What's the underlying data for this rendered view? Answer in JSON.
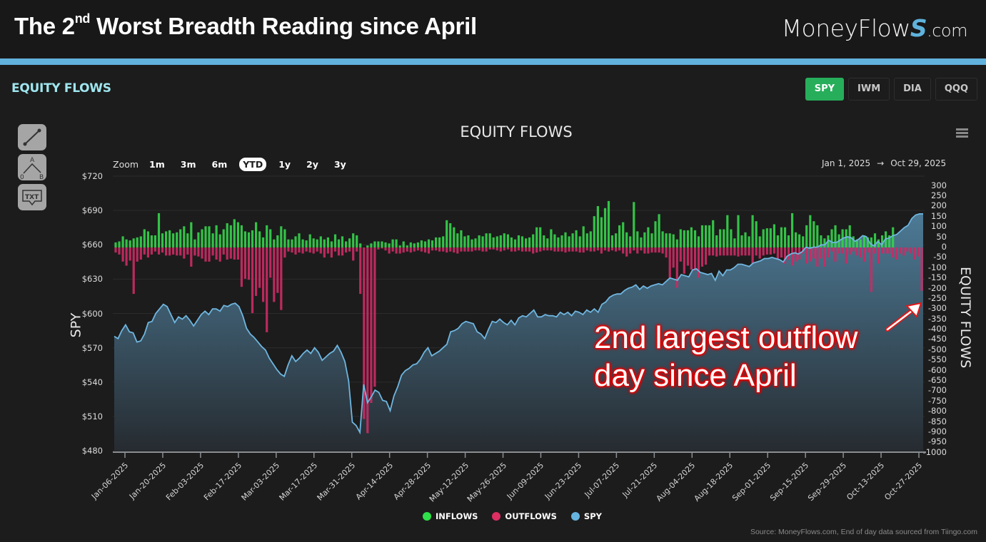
{
  "header": {
    "title_pre": "The 2",
    "title_sup": "nd",
    "title_post": " Worst Breadth Reading since April",
    "brand_main": "MoneyFlow",
    "brand_s": "S",
    "brand_domain": ".com"
  },
  "section": {
    "title": "EQUITY FLOWS"
  },
  "tickers": [
    {
      "label": "SPY",
      "active": true
    },
    {
      "label": "IWM",
      "active": false
    },
    {
      "label": "DIA",
      "active": false
    },
    {
      "label": "QQQ",
      "active": false
    }
  ],
  "tools": [
    {
      "name": "trend-line-tool",
      "label": ""
    },
    {
      "name": "abc-pattern-tool",
      "label": "A 0 B"
    },
    {
      "name": "text-annotation-tool",
      "label": "TXT"
    }
  ],
  "chart": {
    "title": "EQUITY FLOWS",
    "zoom_label": "Zoom",
    "zoom_options": [
      {
        "label": "1m",
        "active": false
      },
      {
        "label": "3m",
        "active": false
      },
      {
        "label": "6m",
        "active": false
      },
      {
        "label": "YTD",
        "active": true
      },
      {
        "label": "1y",
        "active": false
      },
      {
        "label": "2y",
        "active": false
      },
      {
        "label": "3y",
        "active": false
      }
    ],
    "range_from": "Jan 1, 2025",
    "range_arrow": "→",
    "range_to": "Oct 29, 2025",
    "left_axis_title": "SPY",
    "right_axis_title": "EQUITY FLOWS",
    "annotation_line1": "2nd largest outflow",
    "annotation_line2": "day since April",
    "source": "Source: MoneyFlows.com, End of day data sourced from Tiingo.com"
  },
  "legend": [
    {
      "label": "INFLOWS",
      "color": "#2ee04a"
    },
    {
      "label": "OUTFLOWS",
      "color": "#dd2f62"
    },
    {
      "label": "SPY",
      "color": "#66b3e0"
    }
  ],
  "colors": {
    "inflow": "#36d04c",
    "outflow": "#c92b64",
    "spy_line": "#6fb6e0",
    "spy_fill_top": "#4f7f9c",
    "spy_fill_bottom": "#262b30",
    "grid": "#2b2b2b",
    "active_ticker": "#27ae5b",
    "accent_stripe": "#62b2de"
  },
  "chart_data": {
    "type": "bar+line",
    "title": "EQUITY FLOWS",
    "xlabel": "",
    "ylabel_left": "SPY",
    "ylabel_right": "EQUITY FLOWS",
    "ylim_left": [
      480,
      720
    ],
    "ylim_right": [
      -1000,
      300
    ],
    "left_ticks": [
      "$720",
      "$690",
      "$660",
      "$630",
      "$600",
      "$570",
      "$540",
      "$510",
      "$480"
    ],
    "right_ticks": [
      "300",
      "250",
      "200",
      "150",
      "100",
      "50",
      "0",
      "-50",
      "-100",
      "-150",
      "-200",
      "-250",
      "-300",
      "-350",
      "-400",
      "-450",
      "-500",
      "-550",
      "-600",
      "-650",
      "-700",
      "-750",
      "-800",
      "-850",
      "-900",
      "-950",
      "-1000"
    ],
    "x_ticks": [
      "Jan-06-2025",
      "Jan-20-2025",
      "Feb-03-2025",
      "Feb-17-2025",
      "Mar-03-2025",
      "Mar-17-2025",
      "Mar-31-2025",
      "Apr-14-2025",
      "Apr-28-2025",
      "May-12-2025",
      "May-26-2025",
      "Jun-09-2025",
      "Jun-23-2025",
      "Jul-07-2025",
      "Jul-21-2025",
      "Aug-04-2025",
      "Aug-18-2025",
      "Sep-01-2025",
      "Sep-15-2025",
      "Sep-29-2025",
      "Oct-13-2025",
      "Oct-27-2025"
    ],
    "legend": [
      "INFLOWS",
      "OUTFLOWS",
      "SPY"
    ],
    "grid": true,
    "series": [
      {
        "name": "INFLOWS",
        "type": "bar",
        "values": [
          25,
          30,
          55,
          40,
          35,
          45,
          50,
          55,
          90,
          80,
          60,
          60,
          170,
          70,
          80,
          85,
          70,
          75,
          90,
          105,
          70,
          125,
          40,
          75,
          90,
          105,
          105,
          70,
          110,
          65,
          90,
          120,
          110,
          140,
          125,
          110,
          80,
          75,
          85,
          125,
          80,
          50,
          110,
          90,
          40,
          60,
          105,
          90,
          40,
          40,
          55,
          70,
          40,
          35,
          65,
          45,
          40,
          55,
          40,
          50,
          30,
          65,
          40,
          55,
          30,
          45,
          70,
          60,
          20,
          0,
          10,
          20,
          30,
          30,
          30,
          25,
          20,
          40,
          40,
          10,
          30,
          10,
          25,
          20,
          25,
          35,
          30,
          40,
          35,
          50,
          50,
          55,
          135,
          120,
          100,
          70,
          85,
          55,
          60,
          40,
          45,
          60,
          55,
          70,
          70,
          50,
          55,
          60,
          70,
          65,
          50,
          40,
          60,
          55,
          45,
          50,
          65,
          100,
          100,
          60,
          45,
          90,
          65,
          50,
          60,
          75,
          55,
          70,
          85,
          55,
          105,
          70,
          80,
          155,
          205,
          150,
          195,
          230,
          60,
          70,
          110,
          125,
          75,
          55,
          225,
          80,
          50,
          75,
          100,
          70,
          130,
          165,
          80,
          70,
          70,
          65,
          40,
          90,
          85,
          85,
          100,
          85,
          55,
          110,
          110,
          110,
          135,
          60,
          90,
          90,
          160,
          90,
          45,
          160,
          60,
          75,
          55,
          160,
          130,
          55,
          90,
          95,
          95,
          115,
          60,
          100,
          100,
          60,
          170,
          75,
          65,
          55,
          110,
          160,
          130,
          110,
          60,
          45,
          60,
          90,
          110,
          65,
          90,
          90,
          110,
          55,
          40,
          40,
          60,
          50,
          50,
          70,
          40,
          60,
          80,
          60,
          100
        ],
        "note": "Approximate daily inflow magnitudes (units of right axis)"
      },
      {
        "name": "OUTFLOWS",
        "type": "bar",
        "values": [
          -25,
          -35,
          -70,
          -90,
          -65,
          -230,
          -70,
          -60,
          -35,
          -50,
          -35,
          -20,
          -35,
          -25,
          -40,
          -40,
          -35,
          -40,
          -40,
          -55,
          -35,
          -95,
          -40,
          -45,
          -55,
          -70,
          -70,
          -40,
          -60,
          -70,
          -35,
          -60,
          -55,
          -60,
          -60,
          -195,
          -155,
          -160,
          -325,
          -240,
          -200,
          -270,
          -420,
          -150,
          -270,
          -225,
          -310,
          -50,
          -20,
          -25,
          -35,
          -25,
          -30,
          -20,
          -25,
          -30,
          -20,
          -30,
          -50,
          -30,
          -50,
          -20,
          -40,
          -40,
          -25,
          -20,
          -65,
          -20,
          -230,
          -850,
          -920,
          -770,
          -690,
          -10,
          -5,
          -15,
          -30,
          -20,
          -30,
          -30,
          -25,
          -20,
          -25,
          -20,
          -15,
          -20,
          -25,
          -30,
          -15,
          -15,
          -20,
          -20,
          -25,
          -20,
          -25,
          -30,
          -20,
          -20,
          -20,
          -20,
          -15,
          -15,
          -20,
          -20,
          -10,
          -10,
          -15,
          -20,
          -15,
          -10,
          -20,
          -20,
          -15,
          -20,
          -20,
          -20,
          -30,
          -25,
          -20,
          -15,
          -15,
          -15,
          -20,
          -20,
          -20,
          -25,
          -20,
          -20,
          -20,
          -25,
          -25,
          -15,
          -20,
          -20,
          -15,
          -30,
          -15,
          -20,
          -15,
          -20,
          -15,
          -30,
          -45,
          -30,
          -15,
          -30,
          -15,
          -30,
          -30,
          -25,
          -25,
          -25,
          -30,
          -50,
          -150,
          -100,
          -200,
          -70,
          -130,
          -90,
          -110,
          -115,
          -150,
          -95,
          -85,
          -40,
          -40,
          -45,
          -40,
          -40,
          -40,
          -40,
          -40,
          -45,
          -40,
          -40,
          -40,
          -80,
          -40,
          -55,
          -40,
          -35,
          -35,
          -30,
          -55,
          -50,
          -80,
          -60,
          -90,
          -70,
          -60,
          -30,
          -80,
          -70,
          -55,
          -95,
          -55,
          -95,
          -50,
          -20,
          -70,
          -30,
          -30,
          -80,
          -35,
          -20,
          -40,
          -50,
          -70,
          -25,
          -220,
          -30,
          -80,
          -30,
          -30,
          -30,
          -50,
          -60,
          -30,
          -40,
          -20,
          -30,
          -60,
          -45,
          -215
        ],
        "note": "Approximate daily outflow magnitudes (units of right axis); final bar ≈ -215 is the 2nd largest since April"
      },
      {
        "name": "SPY",
        "type": "area",
        "values": [
          580,
          578,
          585,
          590,
          584,
          583,
          575,
          576,
          582,
          592,
          593,
          600,
          604,
          608,
          606,
          599,
          592,
          597,
          595,
          598,
          594,
          589,
          594,
          599,
          602,
          599,
          604,
          604,
          602,
          607,
          606,
          608,
          609,
          606,
          598,
          587,
          582,
          579,
          575,
          571,
          568,
          561,
          556,
          551,
          547,
          545,
          555,
          563,
          558,
          561,
          565,
          568,
          565,
          570,
          566,
          559,
          562,
          565,
          567,
          572,
          566,
          558,
          541,
          505,
          502,
          496,
          538,
          522,
          527,
          533,
          531,
          524,
          523,
          515,
          528,
          536,
          546,
          550,
          552,
          555,
          556,
          560,
          566,
          570,
          563,
          565,
          567,
          570,
          573,
          584,
          585,
          587,
          591,
          593,
          592,
          591,
          584,
          582,
          578,
          586,
          593,
          592,
          595,
          592,
          590,
          594,
          590,
          596,
          598,
          597,
          600,
          603,
          597,
          597,
          599,
          598,
          598,
          597,
          601,
          599,
          601,
          598,
          602,
          601,
          599,
          603,
          601,
          604,
          601,
          608,
          610,
          614,
          616,
          617,
          617,
          620,
          622,
          623,
          625,
          621,
          624,
          622,
          624,
          625,
          626,
          625,
          628,
          631,
          630,
          629,
          634,
          633,
          632,
          638,
          639,
          636,
          635,
          634,
          635,
          629,
          637,
          633,
          638,
          638,
          640,
          643,
          643,
          642,
          641,
          644,
          645,
          646,
          648,
          648,
          649,
          648,
          647,
          645,
          650,
          652,
          653,
          652,
          654,
          658,
          657,
          658,
          658,
          660,
          660,
          664,
          662,
          662,
          664,
          666,
          667,
          666,
          663,
          665,
          668,
          667,
          661,
          659,
          663,
          660,
          665,
          666,
          668,
          669,
          672,
          675,
          677,
          683,
          686,
          687,
          687
        ],
        "note": "Approximate SPY closing price (left axis)"
      }
    ]
  }
}
